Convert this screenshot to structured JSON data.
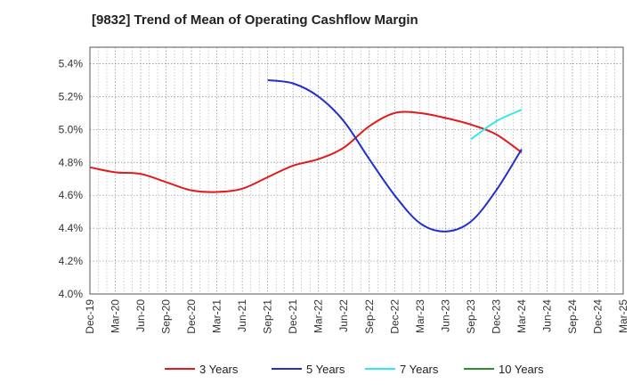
{
  "chart_data": {
    "type": "line",
    "title": "[9832]  Trend of Mean of Operating Cashflow Margin",
    "xlabel": "",
    "ylabel": "",
    "categories": [
      "Dec-19",
      "Mar-20",
      "Jun-20",
      "Sep-20",
      "Dec-20",
      "Mar-21",
      "Jun-21",
      "Sep-21",
      "Dec-21",
      "Mar-22",
      "Jun-22",
      "Sep-22",
      "Dec-22",
      "Mar-23",
      "Jun-23",
      "Sep-23",
      "Dec-23",
      "Mar-24",
      "Jun-24",
      "Sep-24",
      "Dec-24",
      "Mar-25"
    ],
    "ylim": [
      4.0,
      5.5
    ],
    "yticks": [
      "4.0%",
      "4.2%",
      "4.4%",
      "4.6%",
      "4.8%",
      "5.0%",
      "5.2%",
      "5.4%"
    ],
    "ytick_values": [
      4.0,
      4.2,
      4.4,
      4.6,
      4.8,
      5.0,
      5.2,
      5.4
    ],
    "grid": true,
    "legend_position": "bottom",
    "series": [
      {
        "name": "3 Years",
        "color": "#e31a1c",
        "values": [
          4.77,
          4.74,
          4.73,
          4.68,
          4.63,
          4.62,
          4.64,
          4.71,
          4.78,
          4.82,
          4.89,
          5.02,
          5.1,
          5.1,
          5.07,
          5.03,
          4.97,
          4.86,
          null,
          null,
          null,
          null
        ]
      },
      {
        "name": "5 Years",
        "color": "#1f2fd0",
        "values": [
          null,
          null,
          null,
          null,
          null,
          null,
          null,
          5.3,
          5.28,
          5.2,
          5.05,
          4.82,
          4.6,
          4.43,
          4.38,
          4.44,
          4.63,
          4.88,
          null,
          null,
          null,
          null
        ]
      },
      {
        "name": "7 Years",
        "color": "#33e8f0",
        "values": [
          null,
          null,
          null,
          null,
          null,
          null,
          null,
          null,
          null,
          null,
          null,
          null,
          null,
          null,
          null,
          4.94,
          5.05,
          5.12,
          null,
          null,
          null,
          null
        ]
      },
      {
        "name": "10 Years",
        "color": "#2e8b2e",
        "values": [
          null,
          null,
          null,
          null,
          null,
          null,
          null,
          null,
          null,
          null,
          null,
          null,
          null,
          null,
          null,
          null,
          null,
          null,
          null,
          null,
          null,
          null
        ]
      }
    ]
  }
}
